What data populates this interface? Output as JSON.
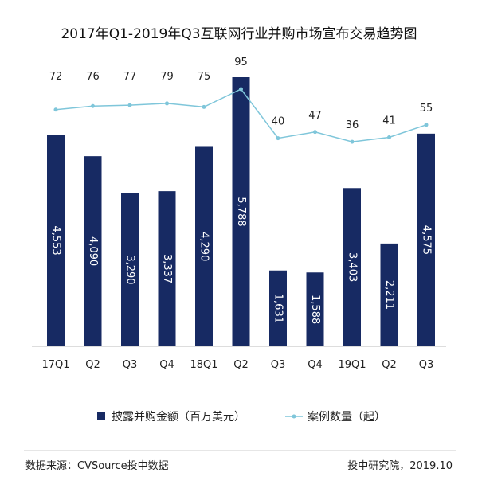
{
  "chart_data": {
    "type": "bar+line",
    "title": "2017年Q1-2019年Q3互联网行业并购市场宣布交易趋势图",
    "categories": [
      "17Q1",
      "Q2",
      "Q3",
      "Q4",
      "18Q1",
      "Q2",
      "Q3",
      "Q4",
      "19Q1",
      "Q2",
      "Q3"
    ],
    "series": [
      {
        "name": "披露并购金额（百万美元）",
        "type": "bar",
        "color": "#172a63",
        "values": [
          4553,
          4090,
          3290,
          3337,
          4290,
          5788,
          1631,
          1588,
          3403,
          2211,
          4575
        ],
        "labels": [
          "4,553",
          "4,090",
          "3,290",
          "3,337",
          "4,290",
          "5,788",
          "1,631",
          "1,588",
          "3,403",
          "2,211",
          "4,575"
        ]
      },
      {
        "name": "案例数量（起）",
        "type": "line",
        "color": "#7fc6da",
        "values": [
          72,
          76,
          77,
          79,
          75,
          95,
          40,
          47,
          36,
          41,
          55
        ]
      }
    ],
    "grid": false,
    "legend": "bottom"
  },
  "footer": {
    "source": "数据来源：CVSource投中数据",
    "credit": "投中研究院，2019.10"
  }
}
